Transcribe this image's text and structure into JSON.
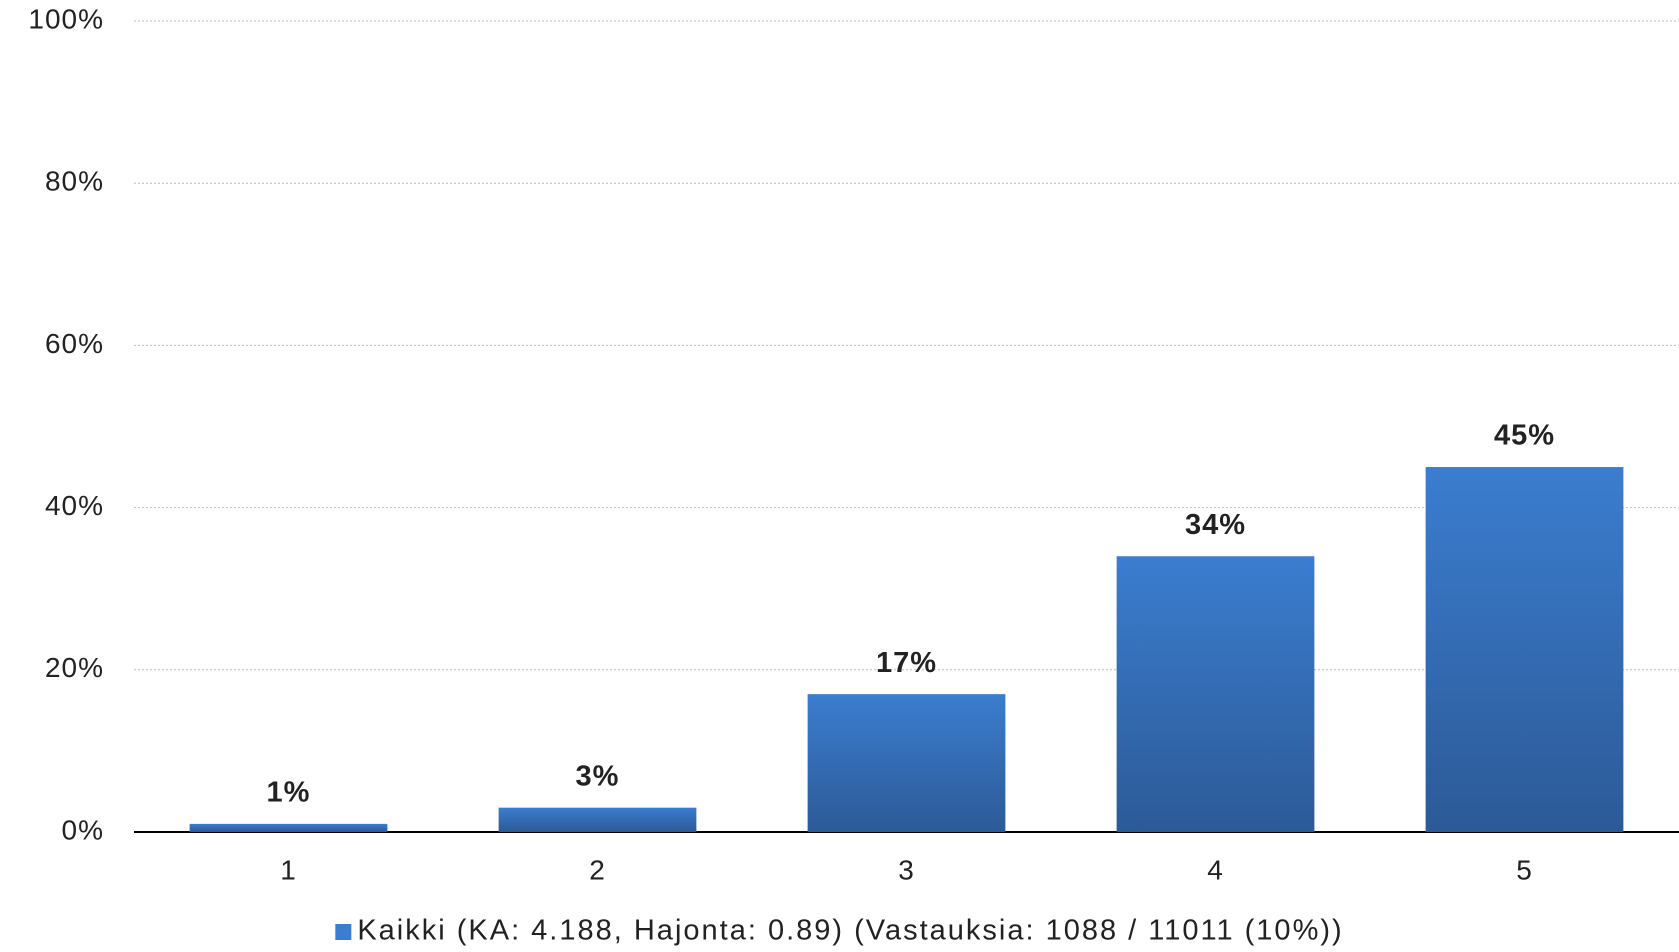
{
  "chart_data": {
    "type": "bar",
    "categories": [
      "1",
      "2",
      "3",
      "4",
      "5"
    ],
    "series": [
      {
        "name": "Kaikki (KA: 4.188, Hajonta: 0.89) (Vastauksia: 1088 / 11011 (10%))",
        "color": "#3b7dcf",
        "values": [
          1,
          3,
          17,
          34,
          45
        ],
        "value_labels": [
          "1%",
          "3%",
          "17%",
          "34%",
          "45%"
        ]
      }
    ],
    "ylim": [
      0,
      100
    ],
    "yticks": [
      {
        "value": 0,
        "label": "0%"
      },
      {
        "value": 20,
        "label": "20%"
      },
      {
        "value": 40,
        "label": "40%"
      },
      {
        "value": 60,
        "label": "60%"
      },
      {
        "value": 80,
        "label": "80%"
      },
      {
        "value": 100,
        "label": "100%"
      }
    ],
    "grid": true,
    "legend": "bottom"
  }
}
